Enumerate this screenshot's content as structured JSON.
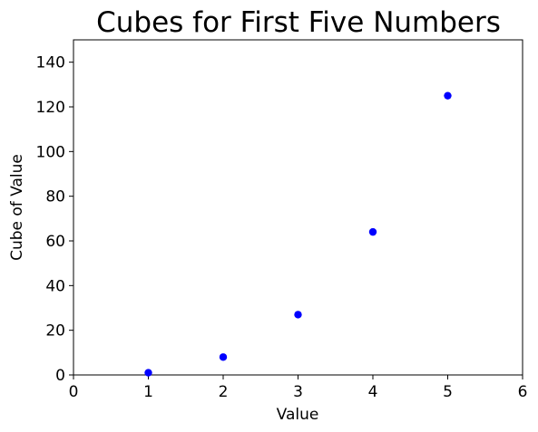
{
  "chart_data": {
    "type": "scatter",
    "title": "Cubes for First Five Numbers",
    "xlabel": "Value",
    "ylabel": "Cube of Value",
    "xlim": [
      0,
      6
    ],
    "ylim": [
      0,
      150
    ],
    "xticks": [
      0,
      1,
      2,
      3,
      4,
      5,
      6
    ],
    "yticks": [
      0,
      20,
      40,
      60,
      80,
      100,
      120,
      140
    ],
    "grid": false,
    "series": [
      {
        "x": [
          1,
          2,
          3,
          4,
          5
        ],
        "y": [
          1,
          8,
          27,
          64,
          125
        ],
        "color": "#0000ff"
      }
    ]
  }
}
